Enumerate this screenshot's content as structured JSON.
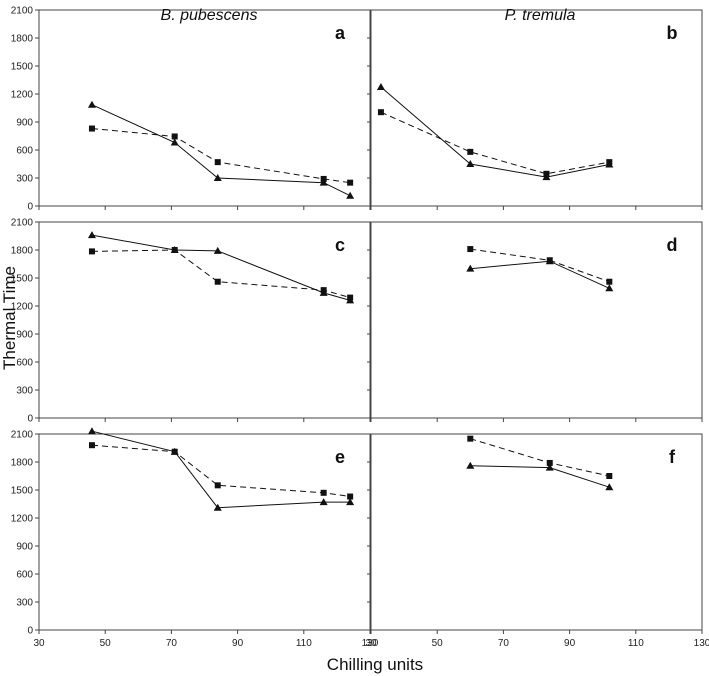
{
  "chart_data": {
    "type": "line",
    "xlabel": "Chilling units",
    "ylabel": "Thermal Time",
    "xlim": [
      30,
      130
    ],
    "ylim": [
      0,
      2100
    ],
    "x_ticks": [
      "30",
      "50",
      "70",
      "90",
      "110",
      "130"
    ],
    "y_ticks": [
      "0",
      "300",
      "600",
      "900",
      "1200",
      "1500",
      "1800",
      "2100"
    ],
    "columns": [
      "B. pubescens",
      "P. tremula"
    ],
    "panels": [
      {
        "label": "a",
        "row": 0,
        "col": 0,
        "series": [
          {
            "name": "triangle-solid",
            "marker": "triangle",
            "line": "solid",
            "x": [
              46,
              71,
              84,
              116,
              124
            ],
            "y": [
              1085,
              680,
              300,
              250,
              110
            ]
          },
          {
            "name": "square-dashed",
            "marker": "square",
            "line": "dashed",
            "x": [
              46,
              71,
              84,
              116,
              124
            ],
            "y": [
              830,
              745,
              470,
              290,
              250
            ]
          }
        ]
      },
      {
        "label": "b",
        "row": 0,
        "col": 1,
        "series": [
          {
            "name": "triangle-solid",
            "marker": "triangle",
            "line": "solid",
            "x": [
              33,
              60,
              83,
              102
            ],
            "y": [
              1275,
              450,
              310,
              445
            ]
          },
          {
            "name": "square-dashed",
            "marker": "square",
            "line": "dashed",
            "x": [
              33,
              60,
              83,
              102
            ],
            "y": [
              1005,
              580,
              345,
              470
            ]
          }
        ]
      },
      {
        "label": "c",
        "row": 1,
        "col": 0,
        "series": [
          {
            "name": "triangle-solid",
            "marker": "triangle",
            "line": "solid",
            "x": [
              46,
              71,
              84,
              116,
              124
            ],
            "y": [
              1960,
              1800,
              1790,
              1340,
              1260
            ]
          },
          {
            "name": "square-dashed",
            "marker": "square",
            "line": "dashed",
            "x": [
              46,
              71,
              84,
              116,
              124
            ],
            "y": [
              1785,
              1800,
              1460,
              1370,
              1290
            ]
          }
        ]
      },
      {
        "label": "d",
        "row": 1,
        "col": 1,
        "series": [
          {
            "name": "triangle-solid",
            "marker": "triangle",
            "line": "solid",
            "x": [
              60,
              84,
              102
            ],
            "y": [
              1600,
              1680,
              1390
            ]
          },
          {
            "name": "square-dashed",
            "marker": "square",
            "line": "dashed",
            "x": [
              60,
              84,
              102
            ],
            "y": [
              1810,
              1690,
              1460
            ]
          }
        ]
      },
      {
        "label": "e",
        "row": 2,
        "col": 0,
        "series": [
          {
            "name": "triangle-solid",
            "marker": "triangle",
            "line": "solid",
            "x": [
              46,
              71,
              84,
              116,
              124
            ],
            "y": [
              2130,
              1910,
              1310,
              1370,
              1370
            ]
          },
          {
            "name": "square-dashed",
            "marker": "square",
            "line": "dashed",
            "x": [
              46,
              71,
              84,
              116,
              124
            ],
            "y": [
              1980,
              1910,
              1550,
              1470,
              1430
            ]
          }
        ]
      },
      {
        "label": "f",
        "row": 2,
        "col": 1,
        "series": [
          {
            "name": "triangle-solid",
            "marker": "triangle",
            "line": "solid",
            "x": [
              60,
              84,
              102
            ],
            "y": [
              1760,
              1740,
              1530
            ]
          },
          {
            "name": "square-dashed",
            "marker": "square",
            "line": "dashed",
            "x": [
              60,
              84,
              102
            ],
            "y": [
              2050,
              1790,
              1650
            ]
          }
        ]
      }
    ]
  }
}
